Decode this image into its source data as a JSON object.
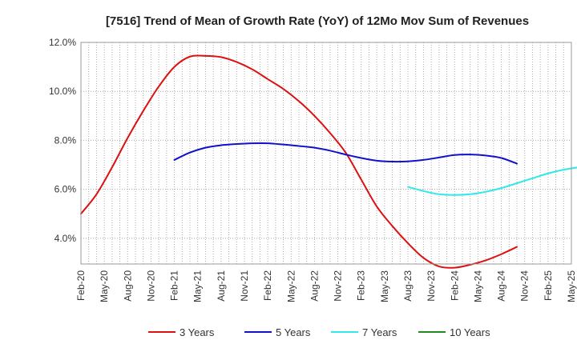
{
  "chart_data": {
    "type": "line",
    "title": "[7516]  Trend of Mean of Growth Rate (YoY) of 12Mo Mov Sum of Revenues",
    "xlabel": "",
    "ylabel": "",
    "ylim": [
      2.95,
      12.0
    ],
    "y_ticks": [
      4.0,
      6.0,
      8.0,
      10.0,
      12.0
    ],
    "y_tick_labels": [
      "4.0%",
      "6.0%",
      "8.0%",
      "10.0%",
      "12.0%"
    ],
    "x_tick_labels": [
      "Feb-20",
      "May-20",
      "Aug-20",
      "Nov-20",
      "Feb-21",
      "May-21",
      "Aug-21",
      "Nov-21",
      "Feb-22",
      "May-22",
      "Aug-22",
      "Nov-22",
      "Feb-23",
      "May-23",
      "Aug-23",
      "Nov-23",
      "Feb-24",
      "May-24",
      "Aug-24",
      "Nov-24",
      "Feb-25",
      "May-25"
    ],
    "grid": true,
    "legend_position": "bottom",
    "series": [
      {
        "name": "3 Years",
        "color": "#dd1111",
        "start_index": 0,
        "values": [
          5.0,
          5.8,
          6.9,
          8.1,
          9.2,
          10.2,
          11.0,
          11.42,
          11.45,
          11.4,
          11.2,
          10.9,
          10.5,
          10.1,
          9.6,
          9.0,
          8.3,
          7.5,
          6.4,
          5.3,
          4.5,
          3.8,
          3.2,
          2.85,
          2.8,
          2.92,
          3.1,
          3.35,
          3.65
        ]
      },
      {
        "name": "5 Years",
        "color": "#1111cc",
        "start_index": 12,
        "values": [
          7.2,
          7.5,
          7.7,
          7.8,
          7.85,
          7.88,
          7.88,
          7.83,
          7.77,
          7.7,
          7.58,
          7.42,
          7.28,
          7.17,
          7.13,
          7.14,
          7.2,
          7.3,
          7.4,
          7.42,
          7.38,
          7.28,
          7.05
        ]
      },
      {
        "name": "7 Years",
        "color": "#33e8e8",
        "start_index": 42,
        "values": [
          6.1,
          5.93,
          5.8,
          5.77,
          5.8,
          5.9,
          6.05,
          6.25,
          6.45,
          6.65,
          6.8,
          6.9,
          6.95
        ]
      },
      {
        "name": "10 Years",
        "color": "#228b22",
        "start_index": 0,
        "values": []
      }
    ]
  }
}
